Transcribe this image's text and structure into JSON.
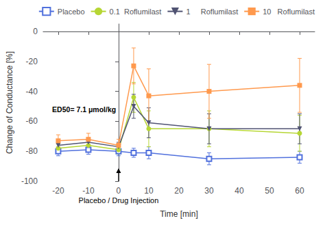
{
  "chart_data": {
    "type": "line",
    "x": [
      -20,
      -10,
      0,
      5,
      10,
      30,
      60
    ],
    "series": [
      {
        "name": "Placebo",
        "marker": "square_open",
        "values": [
          -80,
          -79,
          -80,
          -81,
          -81,
          -85,
          -84
        ],
        "errors": [
          3,
          3,
          3,
          3,
          4,
          4,
          4
        ]
      },
      {
        "name": "0.1  Roflumilast",
        "marker": "circle",
        "values": [
          -78,
          -76,
          -79,
          -44,
          -65,
          -65,
          -68
        ],
        "errors": [
          3,
          3,
          3,
          10,
          12,
          12,
          12
        ]
      },
      {
        "name": "1     Roflumilast",
        "marker": "triangle_down",
        "values": [
          -76,
          -74,
          -77,
          -50,
          -61,
          -65,
          -65
        ],
        "errors": [
          3,
          3,
          3,
          8,
          10,
          10,
          10
        ]
      },
      {
        "name": "10   Roflumilast",
        "marker": "square",
        "values": [
          -73,
          -72,
          -76,
          -23,
          -43,
          -40,
          -36
        ],
        "errors": [
          4,
          4,
          4,
          12,
          18,
          18,
          18
        ]
      }
    ],
    "xlabel": "Time [min]",
    "ylabel": "Change of Conductance [%]",
    "xlim": [
      -25,
      65
    ],
    "ylim": [
      -100,
      5
    ],
    "xticks": [
      -20,
      -10,
      0,
      10,
      20,
      30,
      40,
      50,
      60
    ],
    "yticks": [
      0,
      -20,
      -40,
      -60,
      -80,
      -100
    ],
    "grid": false,
    "legend": "upper right",
    "annotations": [
      {
        "text": "Placebo / Drug Injection",
        "x": 0,
        "y": -100
      },
      {
        "text": "ED50= 7.1 μmol/kg",
        "x": -22,
        "y": -52
      }
    ]
  }
}
